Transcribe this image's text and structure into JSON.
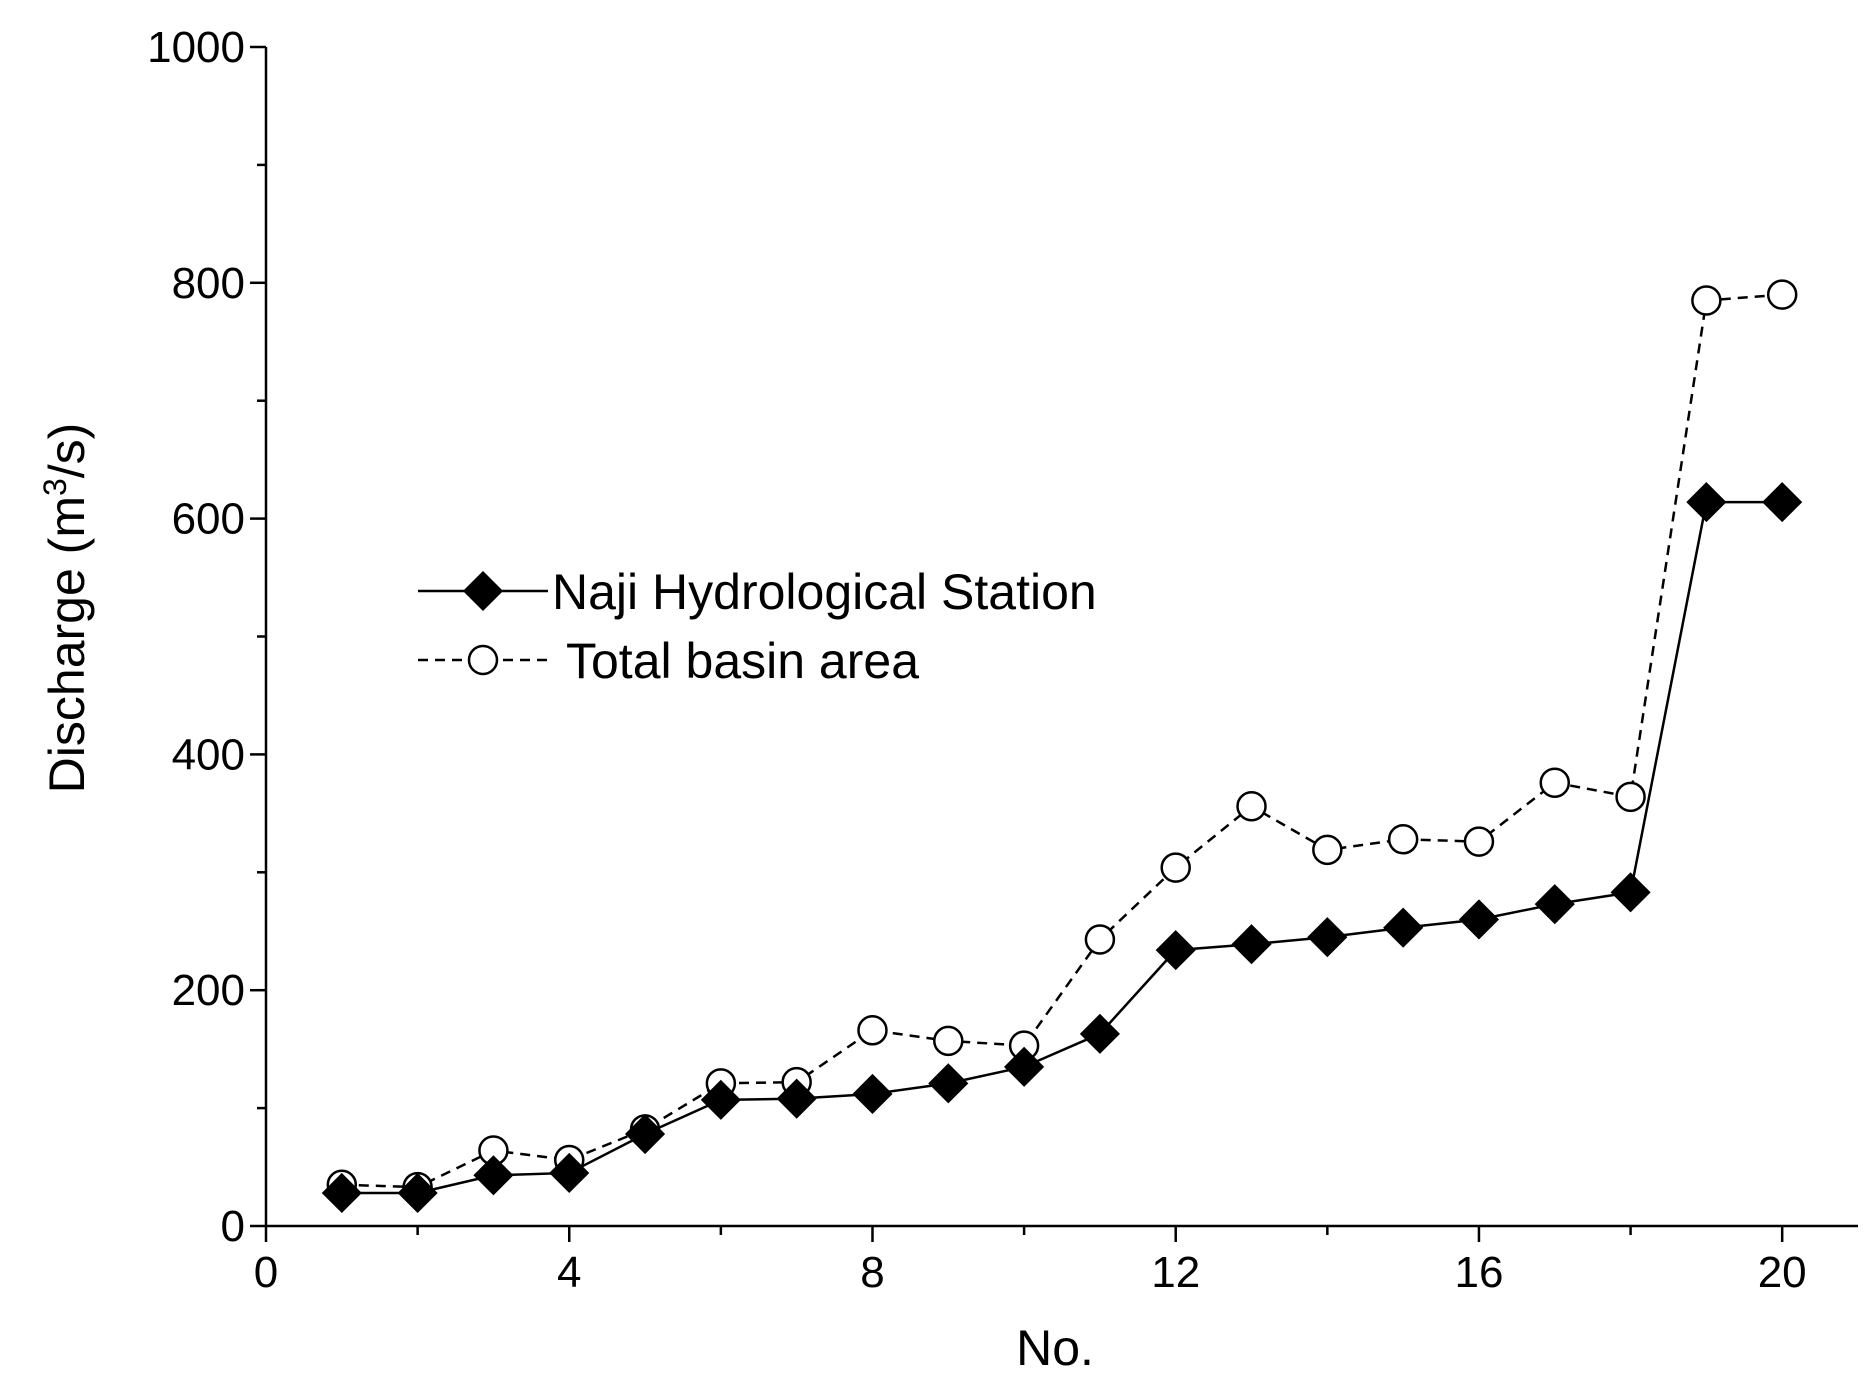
{
  "chart_data": {
    "type": "line",
    "xlabel": "No.",
    "ylabel_parts": {
      "prefix": "Discharge  (m",
      "superscript": "3",
      "suffix": "/s)"
    },
    "xlim": [
      0,
      21
    ],
    "ylim": [
      0,
      1000
    ],
    "x_ticks": [
      0,
      4,
      8,
      12,
      16,
      20
    ],
    "y_ticks": [
      0,
      200,
      400,
      600,
      800,
      1000
    ],
    "x_tick_labels": [
      "0",
      "4",
      "8",
      "12",
      "16",
      "20"
    ],
    "y_tick_labels": [
      "0",
      "200",
      "400",
      "600",
      "800",
      "1000"
    ],
    "x": [
      1,
      2,
      3,
      4,
      5,
      6,
      7,
      8,
      9,
      10,
      11,
      12,
      13,
      14,
      15,
      16,
      17,
      18,
      19,
      20
    ],
    "grid": false,
    "legend_position": "center-left",
    "series": [
      {
        "name": "Naji Hydrological Station",
        "marker": "filled-diamond",
        "line_style": "solid",
        "color": "#000000",
        "values": [
          28,
          28,
          43,
          45,
          78,
          107,
          108,
          112,
          121,
          135,
          163,
          234,
          239,
          245,
          253,
          260,
          273,
          283,
          614,
          614
        ]
      },
      {
        "name": "Total basin area",
        "marker": "open-circle",
        "line_style": "dashed",
        "color": "#000000",
        "values": [
          35,
          33,
          64,
          56,
          82,
          121,
          122,
          166,
          157,
          153,
          243,
          304,
          356,
          319,
          328,
          326,
          376,
          364,
          785,
          790
        ]
      }
    ]
  }
}
